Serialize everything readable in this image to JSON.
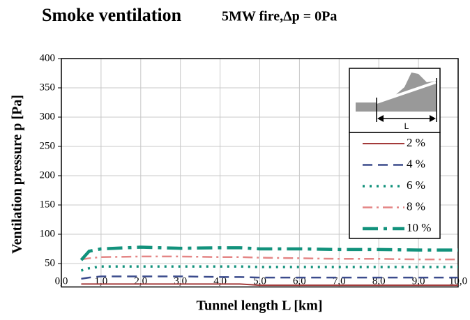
{
  "chart_data": {
    "type": "line",
    "title": "Smoke ventilation",
    "subtitle": "5MW fire,Δp = 0Pa",
    "xlabel": "Tunnel length L [km]",
    "ylabel": "Ventilation pressure  p [Pa]",
    "inset_label": "L",
    "x": [
      0.5,
      0.7,
      1,
      2,
      3,
      4,
      4.5,
      5,
      6,
      7,
      8,
      9,
      10
    ],
    "series": [
      {
        "name": "2 %",
        "color": "#a33a3a",
        "values": [
          15,
          15,
          15,
          15,
          15,
          15,
          15,
          13,
          13,
          13,
          13,
          13,
          13
        ]
      },
      {
        "name": "4 %",
        "color": "#3b4b8c",
        "values": [
          24,
          26,
          28,
          28,
          28,
          27,
          27,
          26,
          26,
          26,
          26,
          26,
          26
        ]
      },
      {
        "name": "6 %",
        "color": "#12927c",
        "values": [
          38,
          42,
          45,
          45,
          45,
          45,
          45,
          44,
          44,
          44,
          44,
          44,
          44
        ]
      },
      {
        "name": "8 %",
        "color": "#e48585",
        "values": [
          57,
          59,
          61,
          62,
          62,
          61,
          61,
          60,
          59,
          58,
          58,
          57,
          57
        ]
      },
      {
        "name": "10 %",
        "color": "#12927c",
        "values": [
          56,
          71,
          75,
          78,
          76,
          77,
          77,
          75,
          75,
          74,
          74,
          73,
          73
        ]
      }
    ],
    "xlim": [
      0,
      10
    ],
    "xticks": [
      {
        "value": 0,
        "label": "0,0"
      },
      {
        "value": 1,
        "label": "1,0"
      },
      {
        "value": 2,
        "label": "2,0"
      },
      {
        "value": 3,
        "label": "3,0"
      },
      {
        "value": 4,
        "label": "4,0"
      },
      {
        "value": 5,
        "label": "5,0"
      },
      {
        "value": 6,
        "label": "6,0"
      },
      {
        "value": 7,
        "label": "7,0"
      },
      {
        "value": 8,
        "label": "8,0"
      },
      {
        "value": 9,
        "label": "9,0"
      },
      {
        "value": 10,
        "label": "10,0"
      }
    ],
    "ylim": [
      10,
      400
    ],
    "yticks": [
      50,
      100,
      150,
      200,
      250,
      300,
      350,
      400
    ],
    "grid": true
  }
}
